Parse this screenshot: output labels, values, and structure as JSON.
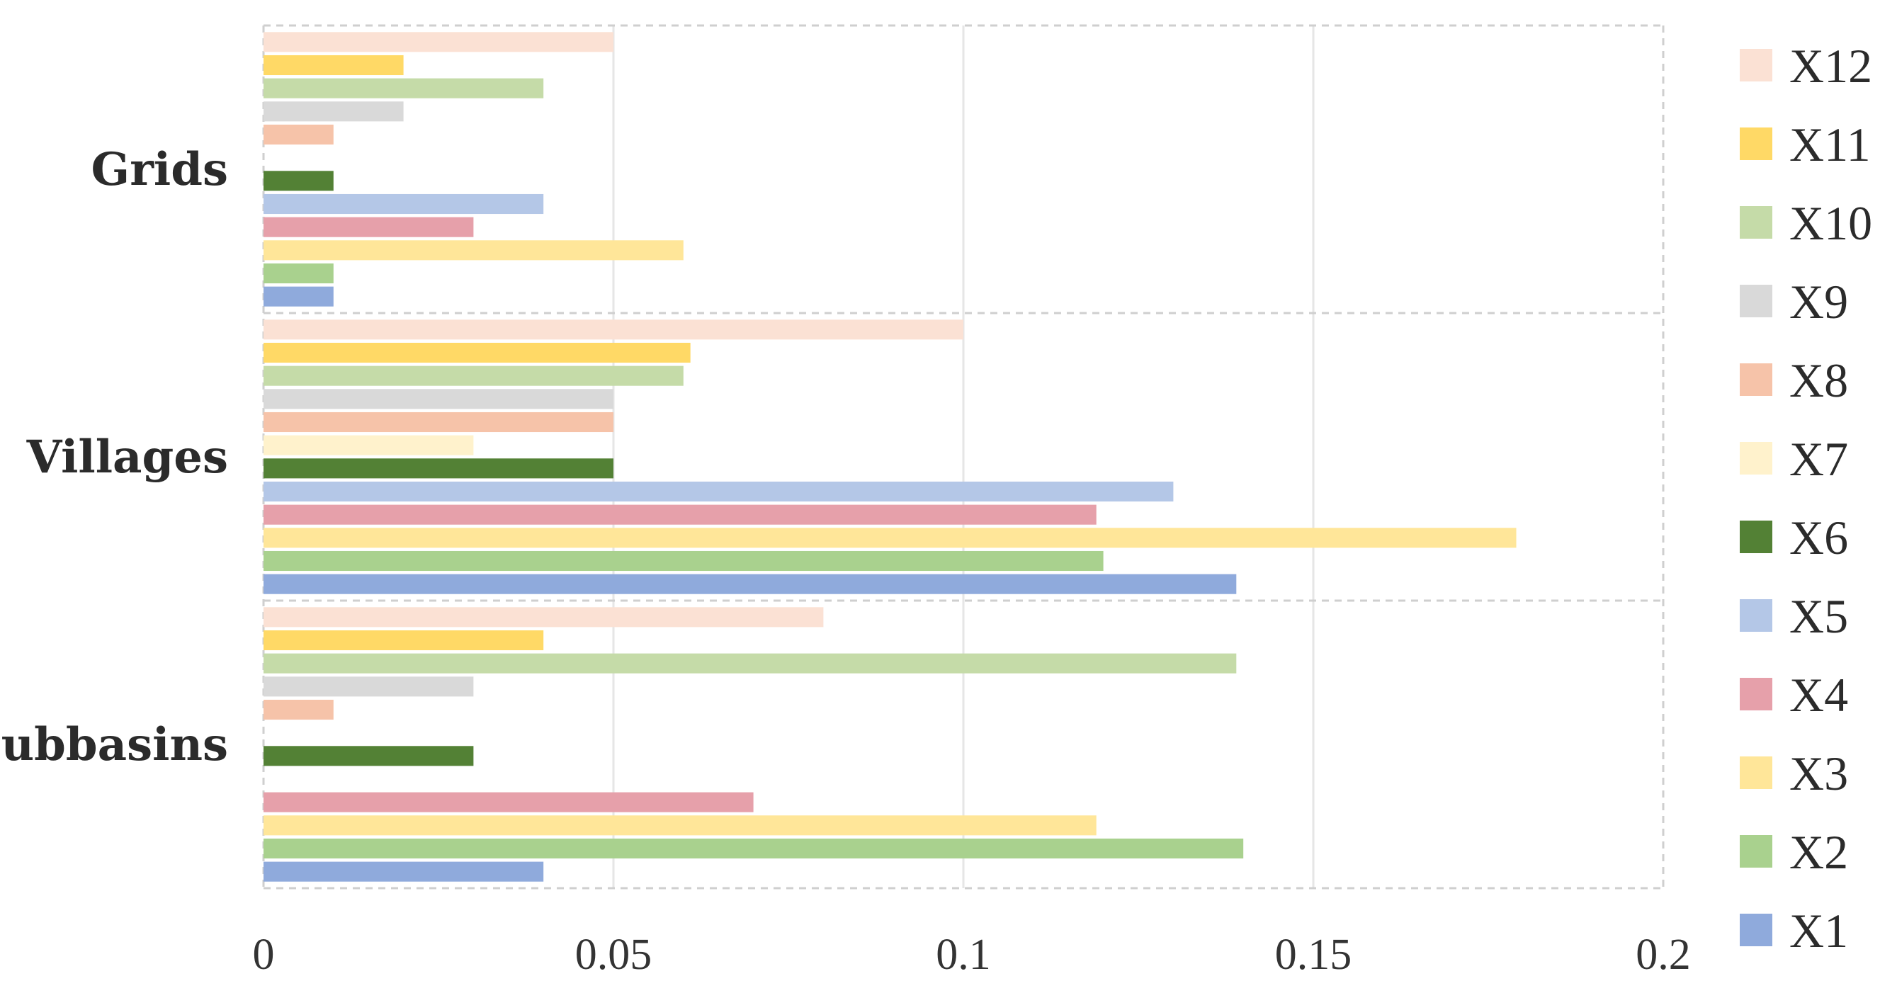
{
  "chart_data": {
    "type": "bar",
    "orientation": "horizontal",
    "categories": [
      "Grids",
      "Villages",
      "Subbasins"
    ],
    "series": [
      {
        "name": "X12",
        "color": "#fbe1d4",
        "values": [
          0.05,
          0.1,
          0.08
        ]
      },
      {
        "name": "X11",
        "color": "#ffd966",
        "values": [
          0.02,
          0.061,
          0.04
        ]
      },
      {
        "name": "X10",
        "color": "#c5dba8",
        "values": [
          0.04,
          0.06,
          0.139
        ]
      },
      {
        "name": "X9",
        "color": "#d9d9d9",
        "values": [
          0.02,
          0.05,
          0.03
        ]
      },
      {
        "name": "X8",
        "color": "#f6c3a9",
        "values": [
          0.01,
          0.05,
          0.01
        ]
      },
      {
        "name": "X7",
        "color": "#fff2cc",
        "values": [
          0.0,
          0.03,
          0.0
        ]
      },
      {
        "name": "X6",
        "color": "#538135",
        "values": [
          0.01,
          0.05,
          0.03
        ]
      },
      {
        "name": "X5",
        "color": "#b4c7e7",
        "values": [
          0.04,
          0.13,
          0.0
        ]
      },
      {
        "name": "X4",
        "color": "#e6a0aa",
        "values": [
          0.03,
          0.119,
          0.07
        ]
      },
      {
        "name": "X3",
        "color": "#ffe699",
        "values": [
          0.06,
          0.179,
          0.119
        ]
      },
      {
        "name": "X2",
        "color": "#a9d18e",
        "values": [
          0.01,
          0.12,
          0.14
        ]
      },
      {
        "name": "X1",
        "color": "#8faadc",
        "values": [
          0.01,
          0.139,
          0.04
        ]
      }
    ],
    "xlim": [
      0,
      0.2
    ],
    "xticks": [
      "0",
      "0.05",
      "0.1",
      "0.15",
      "0.2"
    ],
    "grid": true,
    "legend": "right"
  }
}
